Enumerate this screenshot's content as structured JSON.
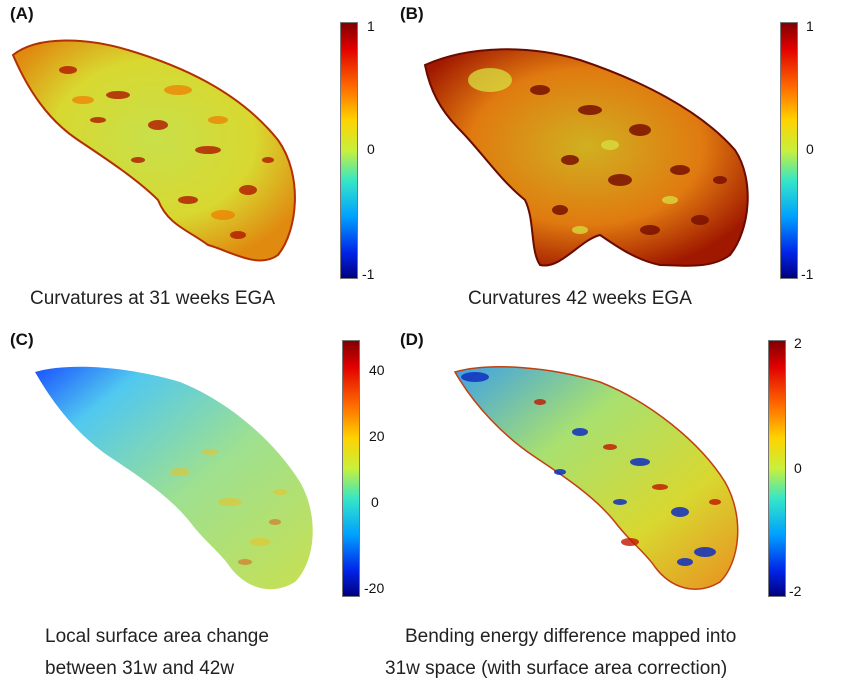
{
  "panels": [
    {
      "label": "(A)",
      "ticks": [
        "1",
        "0",
        "-1"
      ],
      "caption_lines": [
        "Curvatures at 31 weeks EGA"
      ]
    },
    {
      "label": "(B)",
      "ticks": [
        "1",
        "0",
        "-1"
      ],
      "caption_lines": [
        "Curvatures 42 weeks EGA"
      ]
    },
    {
      "label": "(C)",
      "ticks": [
        "40",
        "20",
        "0",
        "-20"
      ],
      "caption_lines": [
        "Local surface area change",
        "between 31w and 42w"
      ]
    },
    {
      "label": "(D)",
      "ticks": [
        "2",
        "0",
        "-2"
      ],
      "caption_lines": [
        "Bending energy difference mapped into",
        "31w space (with surface area correction)"
      ]
    }
  ],
  "colormap": [
    "#00007f",
    "#0024e8",
    "#00a0ff",
    "#34e6c8",
    "#c8f03c",
    "#ffd200",
    "#ff6a00",
    "#e00000",
    "#7f0000"
  ]
}
